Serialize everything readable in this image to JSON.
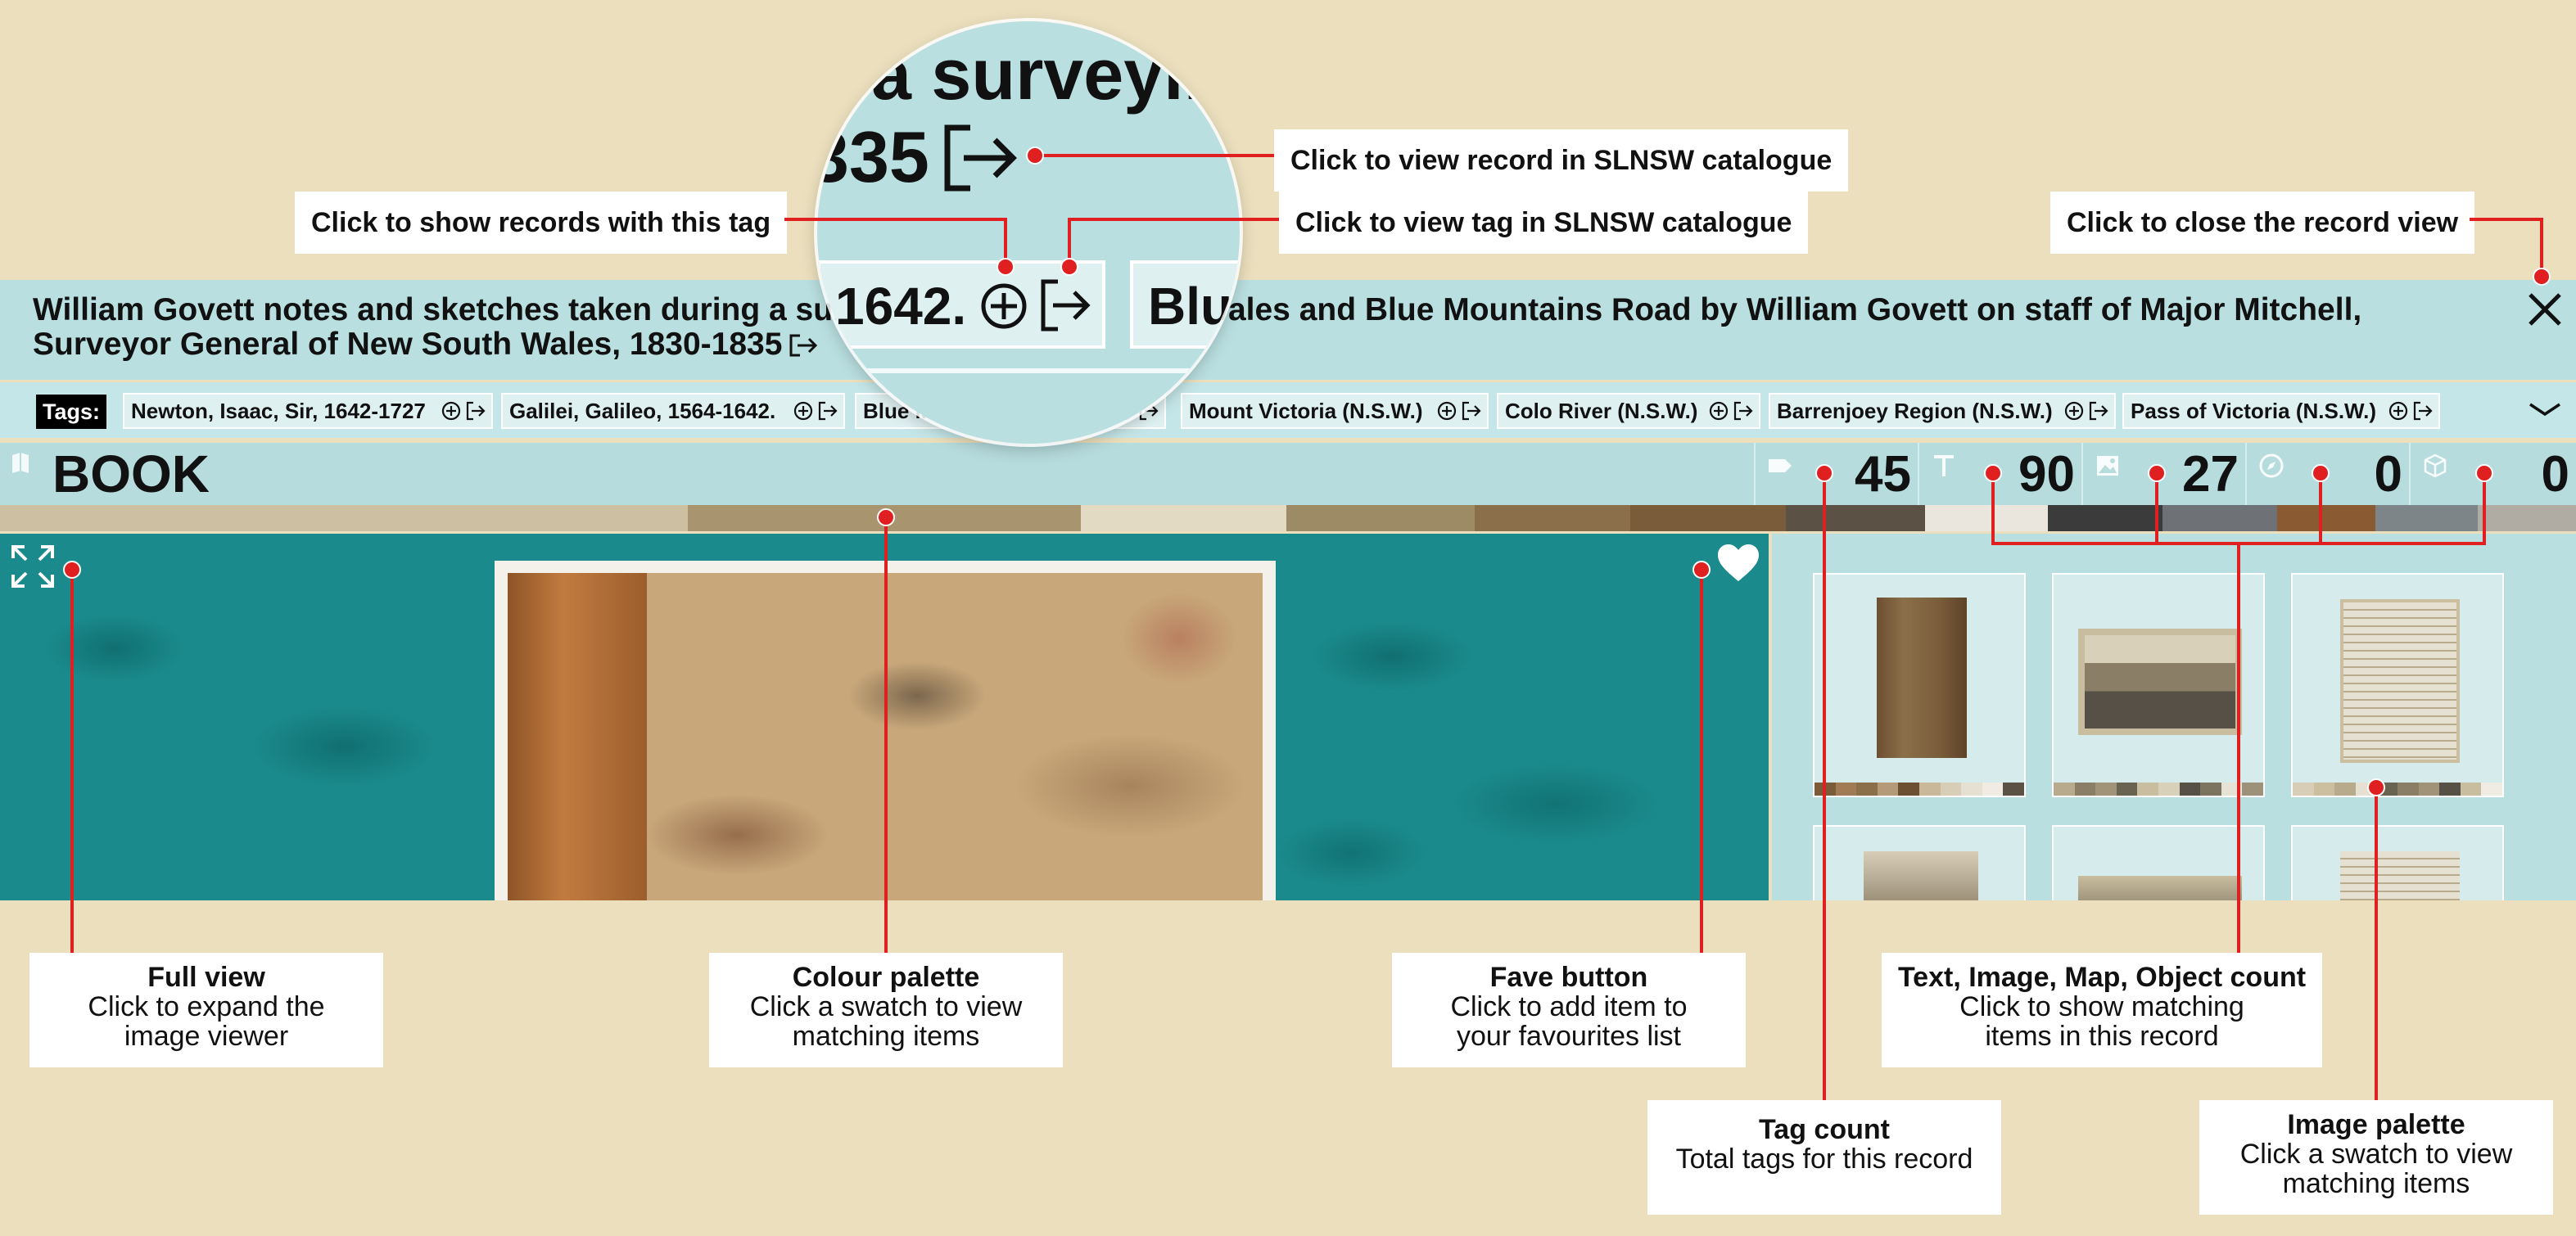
{
  "record": {
    "title": "William Govett notes and sketches taken during a survey in New South Wales and Blue Mountains Road by William Govett on staff of Major Mitchell, Surveyor General of New South Wales, 1830-1835",
    "title_visible_start": "William Govett notes and sketches taken during a surv",
    "title_visible_end": "h Wales and Blue Mountains Road by William Govett on staff of Major Mitchell,",
    "title_line2": "Surveyor General of New South Wales, 1830-1835",
    "type": "BOOK"
  },
  "tags": {
    "label": "Tags:",
    "items": [
      {
        "label": "Newton, Isaac, Sir, 1642-1727"
      },
      {
        "label": "Galilei, Galileo, 1564-1642."
      },
      {
        "label": "Blue M"
      },
      {
        "label": "Mount Victoria (N.S.W.)"
      },
      {
        "label": "Colo River (N.S.W.)"
      },
      {
        "label": "Barrenjoey Region (N.S.W.)"
      },
      {
        "label": "Pass of Victoria (N.S.W.)"
      }
    ]
  },
  "counts": {
    "tags": "45",
    "text": "90",
    "image": "27",
    "map": "0",
    "object": "0"
  },
  "icons": {
    "type": "book-icon",
    "tag": "tag-icon",
    "text": "text-icon",
    "image": "image-icon",
    "map": "compass-icon",
    "object": "cube-icon",
    "add": "add-circle-icon",
    "external": "external-link-icon",
    "close": "close-icon",
    "expand": "expand-icon",
    "fave": "heart-icon",
    "more": "chevron-down-icon"
  },
  "palette": [
    {
      "color": "#cdbfa2",
      "weight": 840
    },
    {
      "color": "#a8946e",
      "weight": 480
    },
    {
      "color": "#e3dac4",
      "weight": 250
    },
    {
      "color": "#9d8b66",
      "weight": 230
    },
    {
      "color": "#8a6f4a",
      "weight": 190
    },
    {
      "color": "#7a5c3a",
      "weight": 190
    },
    {
      "color": "#5b5145",
      "weight": 170
    },
    {
      "color": "#eae6dd",
      "weight": 150
    },
    {
      "color": "#3b3b3b",
      "weight": 140
    },
    {
      "color": "#6e7276",
      "weight": 140
    },
    {
      "color": "#8a5a33",
      "weight": 120
    },
    {
      "color": "#7e8588",
      "weight": 125
    },
    {
      "color": "#b0aca3",
      "weight": 120
    }
  ],
  "thumb_palettes": [
    [
      "#7a5c3a",
      "#a07b55",
      "#8a6f4a",
      "#b49a78",
      "#6d4f31",
      "#c9b89a",
      "#d8cdb7",
      "#e6e0d3",
      "#f0ece3",
      "#5b5145"
    ],
    [
      "#b8aa8c",
      "#8a7e66",
      "#a09377",
      "#6b6352",
      "#c9bd9f",
      "#d9d0ba",
      "#575046",
      "#7d7460",
      "#e7e2d6",
      "#9d9279"
    ],
    [
      "#d8cdb7",
      "#cbbf9f",
      "#b8aa8c",
      "#e6e0d3",
      "#6b6352",
      "#8a7e66",
      "#a09377",
      "#575046",
      "#c9bd9f",
      "#f0ece3"
    ]
  ],
  "lens": {
    "line1": "a surveyin",
    "line2": "335",
    "chip1": "1642.",
    "chip2": "Blu"
  },
  "callouts": {
    "view_record": "Click to view record in SLNSW catalogue",
    "show_tag_records": "Click to show records with this tag",
    "view_tag": "Click to view tag in SLNSW catalogue",
    "close_record": "Click to close the record view",
    "full_view": {
      "title": "Full view",
      "line1": "Click to expand the",
      "line2": "image viewer"
    },
    "colour_palette": {
      "title": "Colour palette",
      "line1": "Click a swatch to view",
      "line2": "matching items"
    },
    "fave_button": {
      "title": "Fave button",
      "line1": "Click to add item to",
      "line2": "your favourites list"
    },
    "counts": {
      "title": "Text, Image, Map, Object count",
      "line1": "Click to show matching",
      "line2": "items in this record"
    },
    "tag_count": {
      "title": "Tag count",
      "line1": "Total tags for this record"
    },
    "image_palette": {
      "title": "Image palette",
      "line1": "Click a swatch to view",
      "line2": "matching items"
    }
  },
  "accent": "#e02020"
}
